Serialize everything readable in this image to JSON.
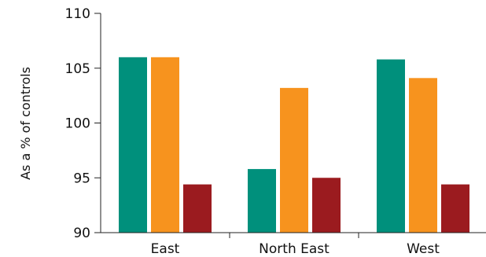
{
  "chart_data": {
    "type": "bar",
    "title": "",
    "xlabel": "",
    "ylabel": "As a % of controls",
    "categories": [
      "East",
      "North East",
      "West"
    ],
    "series": [
      {
        "color": "#00907c",
        "values": [
          106.0,
          95.8,
          105.8
        ]
      },
      {
        "color": "#f7931e",
        "values": [
          106.0,
          103.2,
          104.1
        ]
      },
      {
        "color": "#9b1b1f",
        "values": [
          94.4,
          95.0,
          94.4
        ]
      }
    ],
    "ylim": [
      90,
      110
    ],
    "yticks": [
      90,
      95,
      100,
      105,
      110
    ],
    "grid": false,
    "legend": "none"
  }
}
